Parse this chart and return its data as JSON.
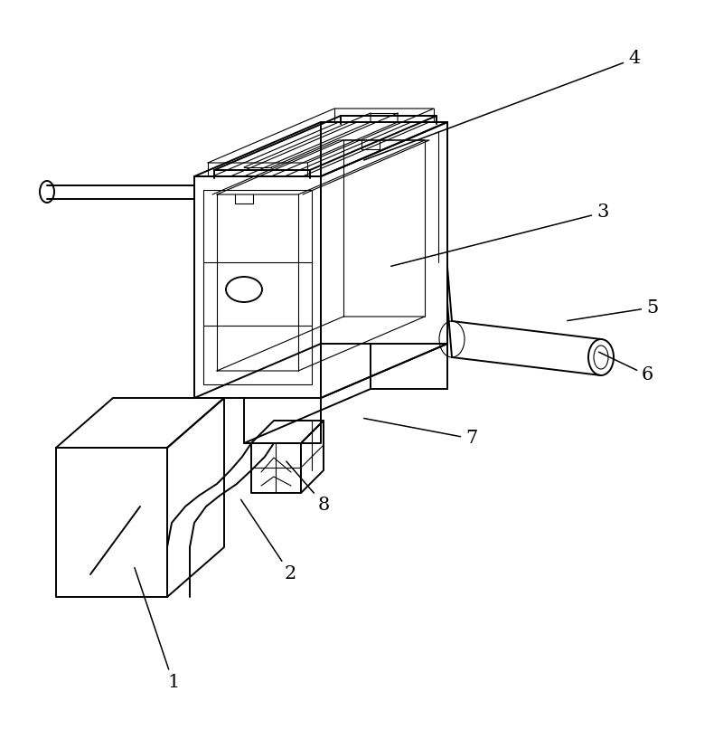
{
  "background_color": "#ffffff",
  "line_color": "#000000",
  "lw": 1.4,
  "lw_thin": 0.8,
  "fig_width": 8.0,
  "fig_height": 8.06,
  "dpi": 100
}
